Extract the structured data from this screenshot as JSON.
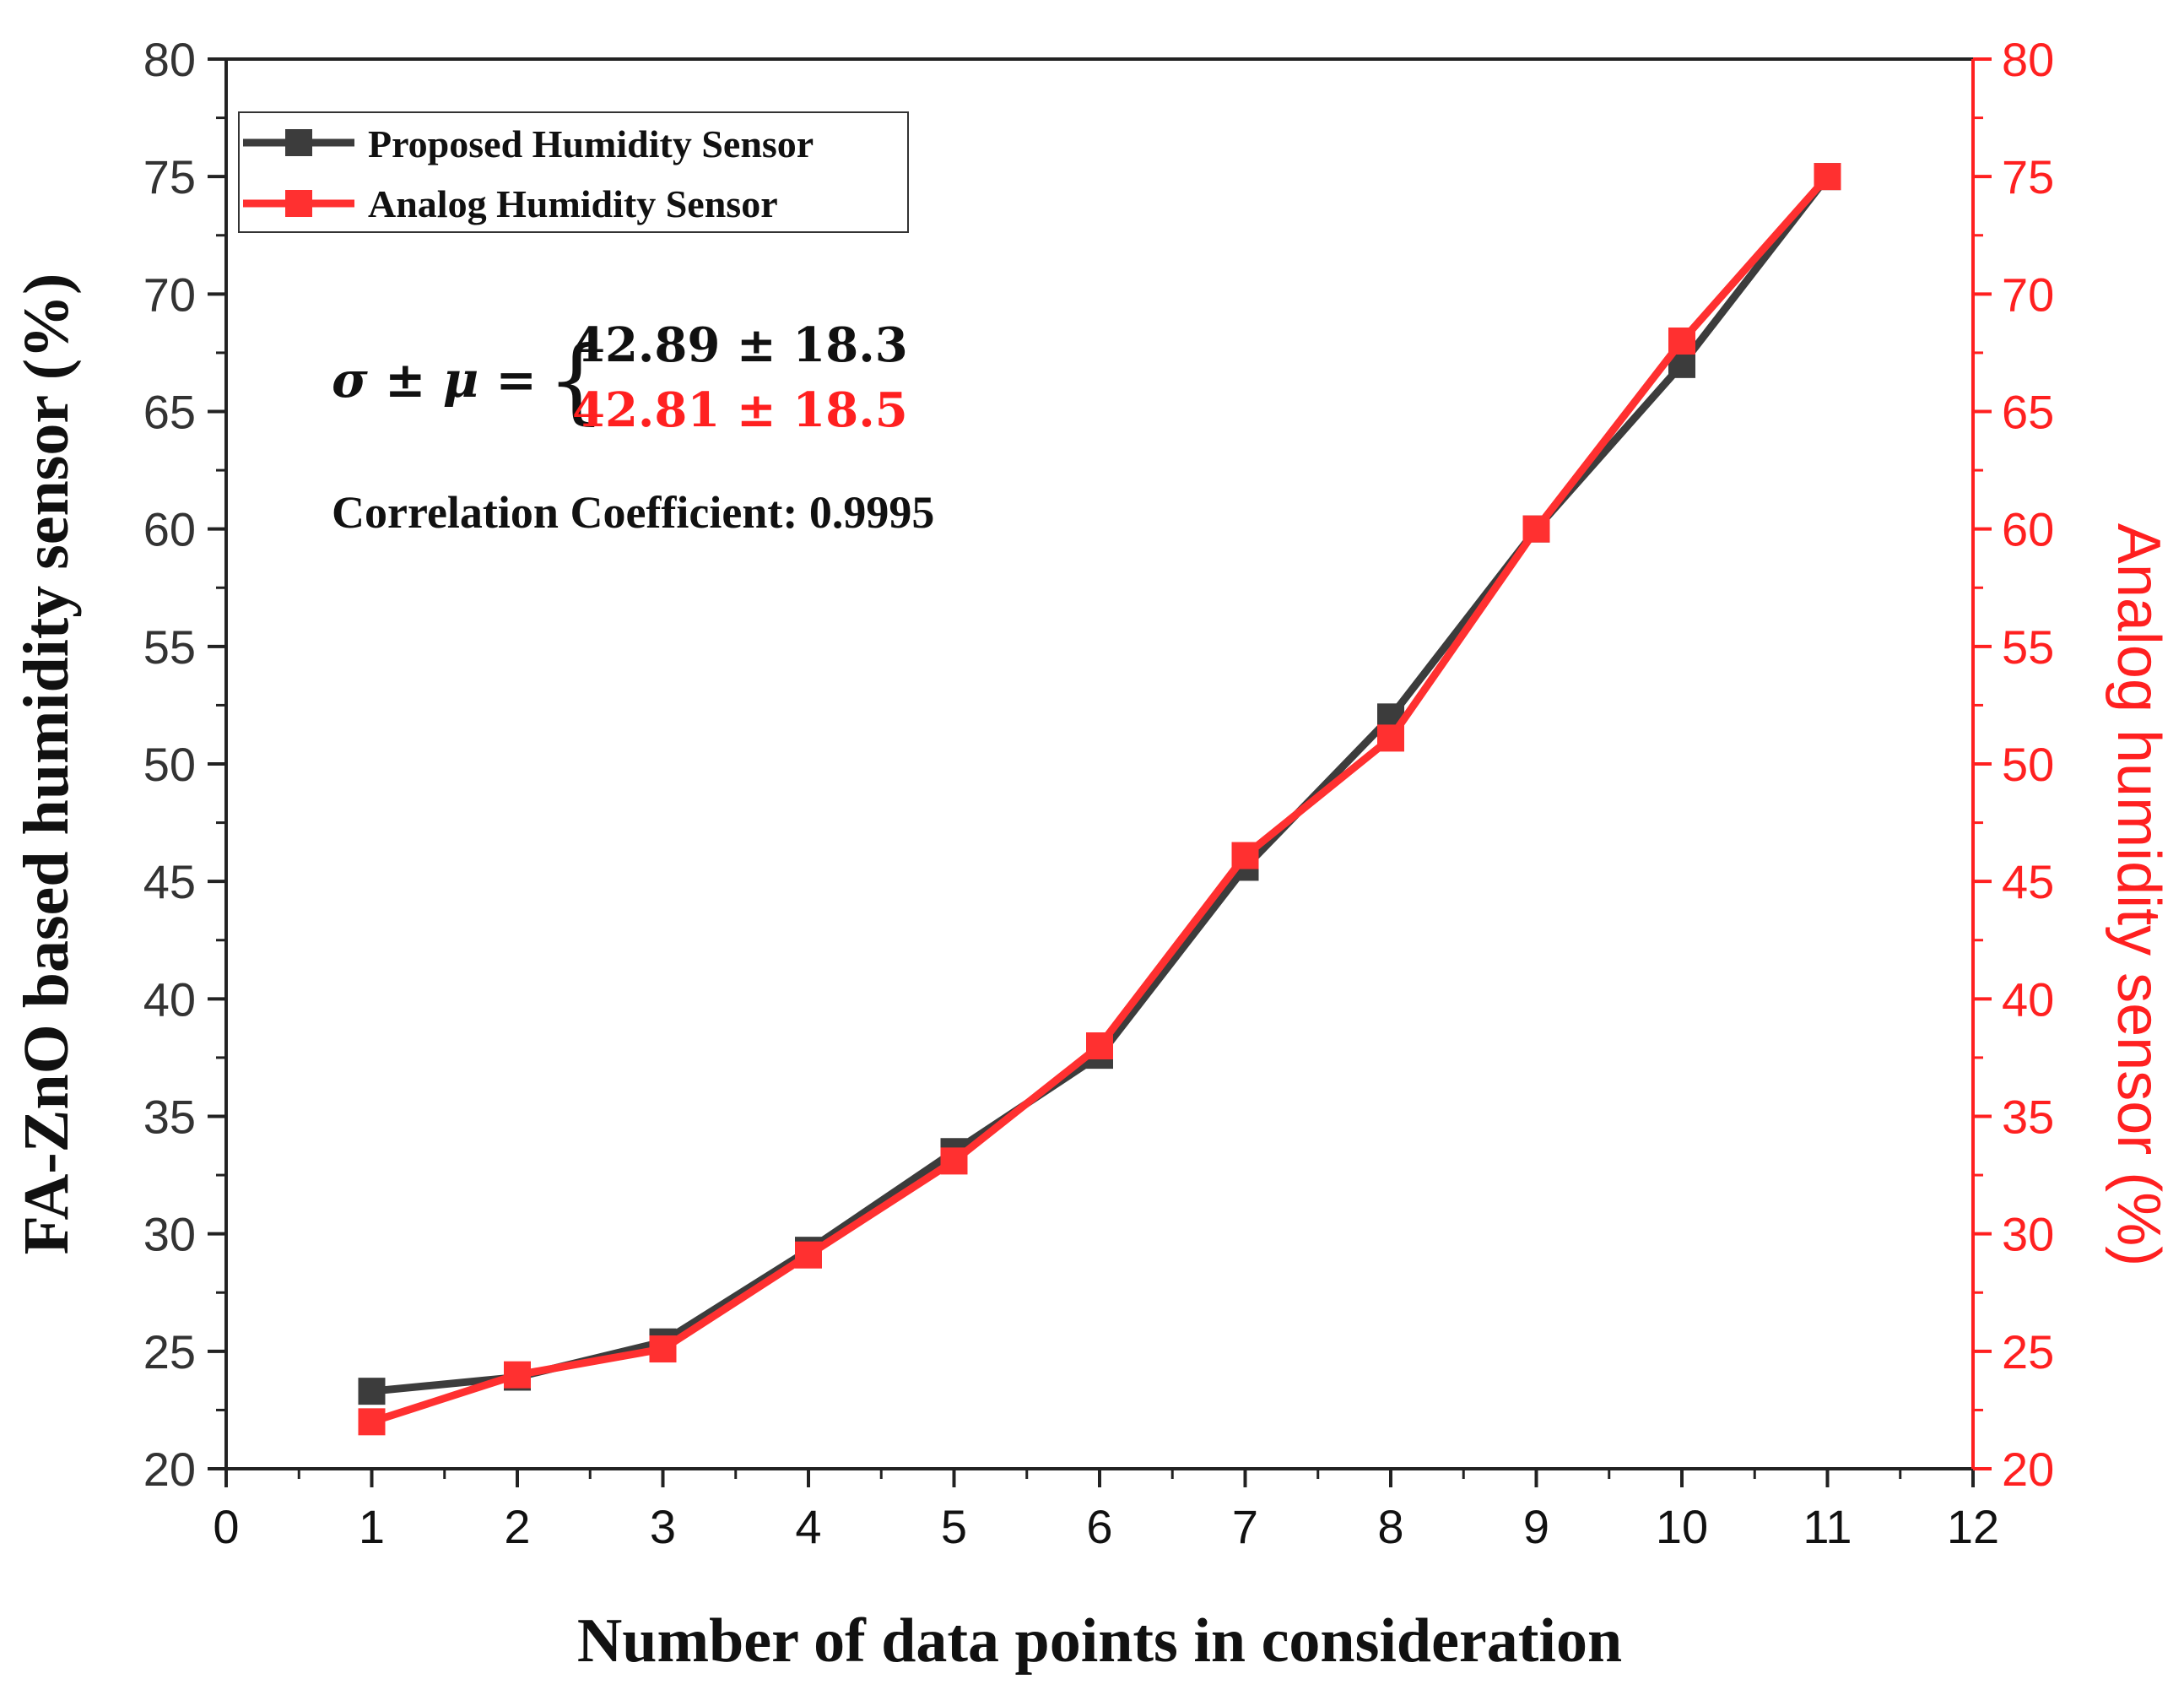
{
  "chart_data": {
    "type": "line",
    "xlabel": "Number of data points in consideration",
    "ylabel_left": "FA-ZnO based humidity sensor (%)",
    "ylabel_right": "Analog humidity sensor (%)",
    "xlim": [
      0,
      12
    ],
    "ylim_left": [
      20,
      80
    ],
    "ylim_right": [
      20,
      80
    ],
    "x_ticks": [
      0,
      1,
      2,
      3,
      4,
      5,
      6,
      7,
      8,
      9,
      10,
      11,
      12
    ],
    "y_ticks": [
      20,
      25,
      30,
      35,
      40,
      45,
      50,
      55,
      60,
      65,
      70,
      75,
      80
    ],
    "x": [
      1,
      2,
      3,
      4,
      5,
      6,
      7,
      8,
      9,
      10,
      11
    ],
    "series": [
      {
        "name": "Proposed Humidity Sensor",
        "color": "#3c3c3c",
        "axis": "left",
        "values": [
          23.3,
          23.9,
          25.4,
          29.3,
          33.5,
          37.6,
          45.6,
          52.0,
          60.0,
          67.0,
          75.0
        ]
      },
      {
        "name": "Analog Humidity Sensor",
        "color": "#ff3030",
        "axis": "right",
        "values": [
          22.0,
          24.0,
          25.1,
          29.1,
          33.1,
          38.0,
          46.1,
          51.1,
          60.0,
          68.0,
          75.0
        ]
      }
    ],
    "legend_position": "top-left",
    "annotations": {
      "equation_lhs": "σ ± μ =",
      "equation_line1": "42.89 ± 18.3",
      "equation_line2": "42.81 ± 18.5",
      "correlation": "Correlation Coefficient: 0.9995"
    },
    "colors": {
      "proposed": "#3c3c3c",
      "analog": "#ff3030",
      "right_axis": "#ff2020"
    }
  }
}
